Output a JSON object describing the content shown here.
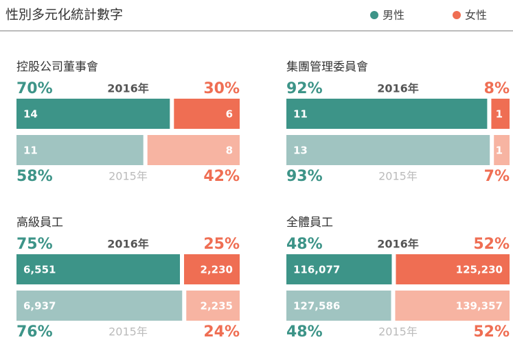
{
  "header": {
    "title": "性別多元化統計數字"
  },
  "legend": [
    {
      "name": "男性",
      "color": "#3d9488",
      "light": "#a0c4c1"
    },
    {
      "name": "女性",
      "color": "#ef6e53",
      "light": "#f7b4a2"
    }
  ],
  "chart_data": [
    {
      "type": "bar",
      "title": "控股公司董事會",
      "categories": [
        "2016年",
        "2015年"
      ],
      "series": [
        {
          "values": [
            14,
            11
          ],
          "shares": [
            70,
            58
          ],
          "share_labels": [
            "70%",
            "58%"
          ]
        },
        {
          "values": [
            6,
            8
          ],
          "shares": [
            30,
            42
          ],
          "share_labels": [
            "30%",
            "42%"
          ]
        }
      ]
    },
    {
      "type": "bar",
      "title": "集團管理委員會",
      "categories": [
        "2016年",
        "2015年"
      ],
      "series": [
        {
          "values": [
            11,
            13
          ],
          "shares": [
            92,
            93
          ],
          "share_labels": [
            "92%",
            "93%"
          ]
        },
        {
          "values": [
            1,
            1
          ],
          "shares": [
            8,
            7
          ],
          "share_labels": [
            "8%",
            "7%"
          ]
        }
      ]
    },
    {
      "type": "bar",
      "title": "高級員工",
      "categories": [
        "2016年",
        "2015年"
      ],
      "series": [
        {
          "values": [
            6551,
            6937
          ],
          "value_labels": [
            "6,551",
            "6,937"
          ],
          "shares": [
            75,
            76
          ],
          "share_labels": [
            "75%",
            "76%"
          ]
        },
        {
          "values": [
            2230,
            2235
          ],
          "value_labels": [
            "2,230",
            "2,235"
          ],
          "shares": [
            25,
            24
          ],
          "share_labels": [
            "25%",
            "24%"
          ]
        }
      ]
    },
    {
      "type": "bar",
      "title": "全體員工",
      "categories": [
        "2016年",
        "2015年"
      ],
      "series": [
        {
          "values": [
            116077,
            127586
          ],
          "value_labels": [
            "116,077",
            "127,586"
          ],
          "shares": [
            48,
            48
          ],
          "share_labels": [
            "48%",
            "48%"
          ]
        },
        {
          "values": [
            125230,
            139357
          ],
          "value_labels": [
            "125,230",
            "139,357"
          ],
          "shares": [
            52,
            52
          ],
          "share_labels": [
            "52%",
            "52%"
          ]
        }
      ]
    }
  ]
}
